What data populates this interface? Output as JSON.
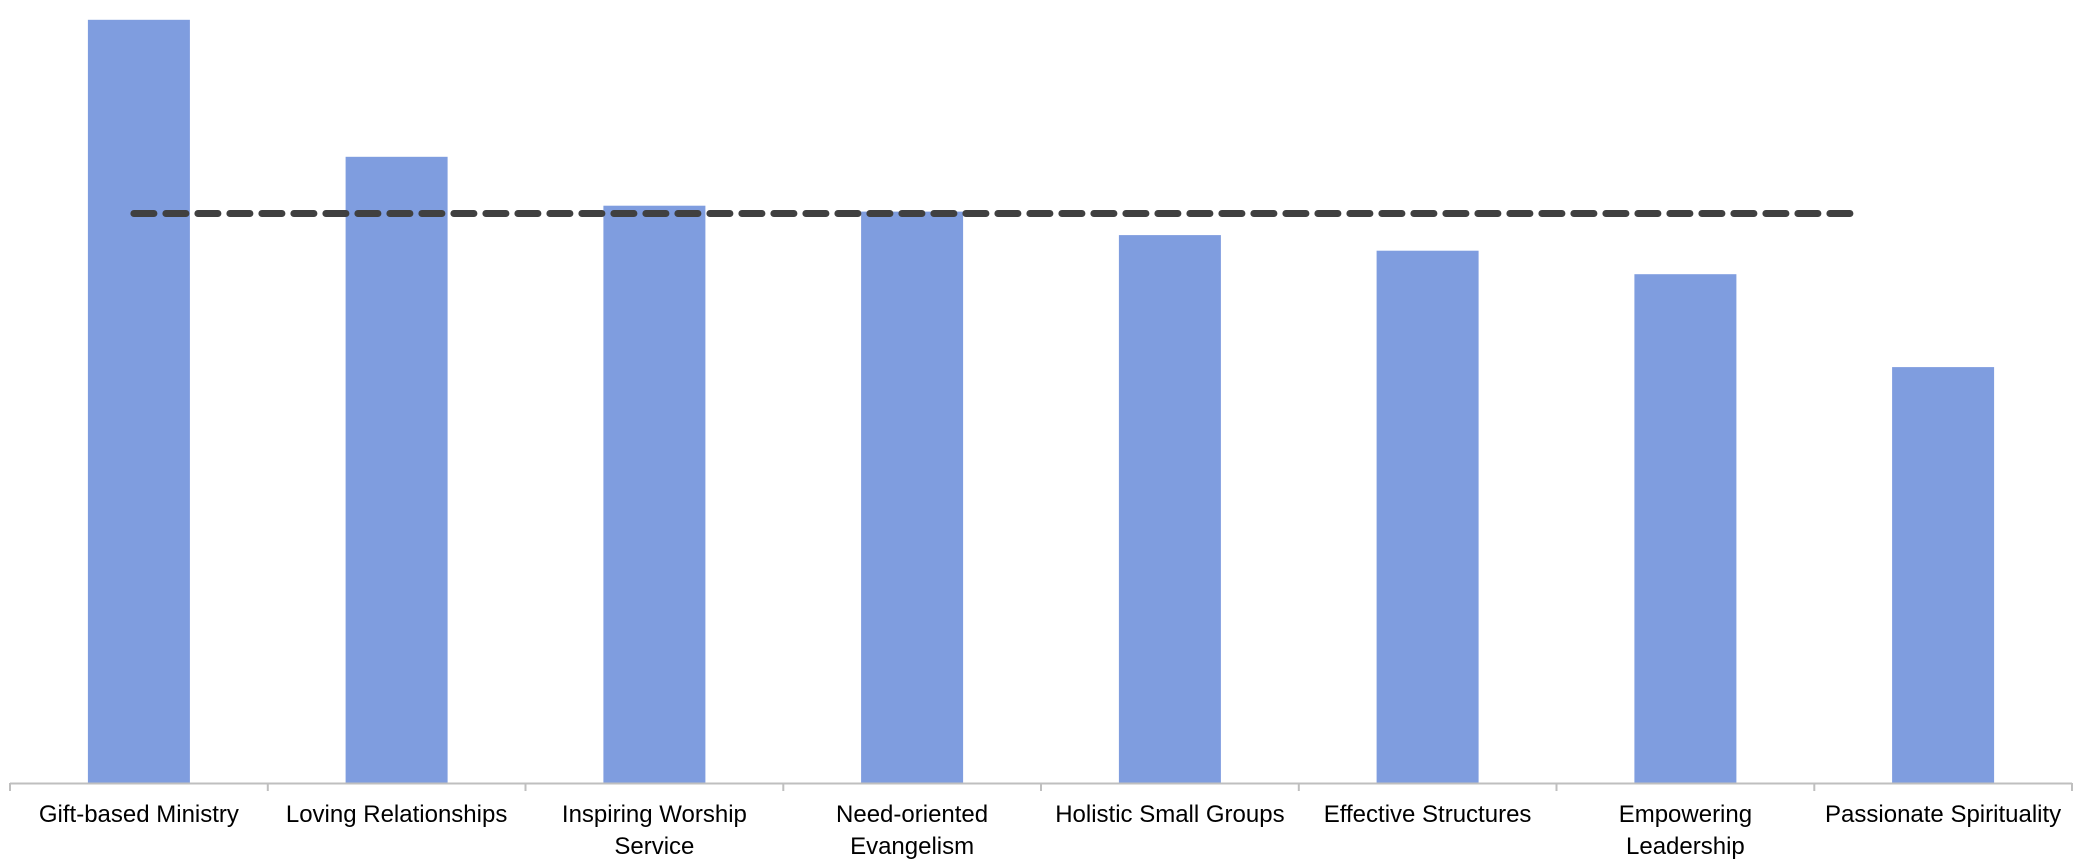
{
  "chart_data": {
    "type": "bar",
    "title": "",
    "xlabel": "",
    "ylabel": "",
    "categories": [
      "Gift-based Ministry",
      "Loving Relationships",
      "Inspiring Worship Service",
      "Need-oriented Evangelism",
      "Holistic Small Groups",
      "Effective Structures",
      "Empowering Leadership",
      "Passionate Spirituality"
    ],
    "category_lines": [
      [
        "Gift-based Ministry"
      ],
      [
        "Loving Relationships"
      ],
      [
        "Inspiring Worship",
        "Service"
      ],
      [
        "Need-oriented",
        "Evangelism"
      ],
      [
        "Holistic Small Groups"
      ],
      [
        "Effective Structures"
      ],
      [
        "Empowering",
        "Leadership"
      ],
      [
        "Passionate Spirituality"
      ]
    ],
    "values": [
      78,
      64,
      59,
      58.4,
      56,
      54.4,
      52,
      42.5
    ],
    "reference_line": {
      "value": 58.2,
      "style": "dashed"
    },
    "ylim": [
      0,
      79
    ],
    "grid": false,
    "legend": "none",
    "colors": {
      "bar": "#7f9ddf",
      "reference_line": "#404040",
      "axis": "#bfbfbf",
      "label": "#000000"
    }
  }
}
